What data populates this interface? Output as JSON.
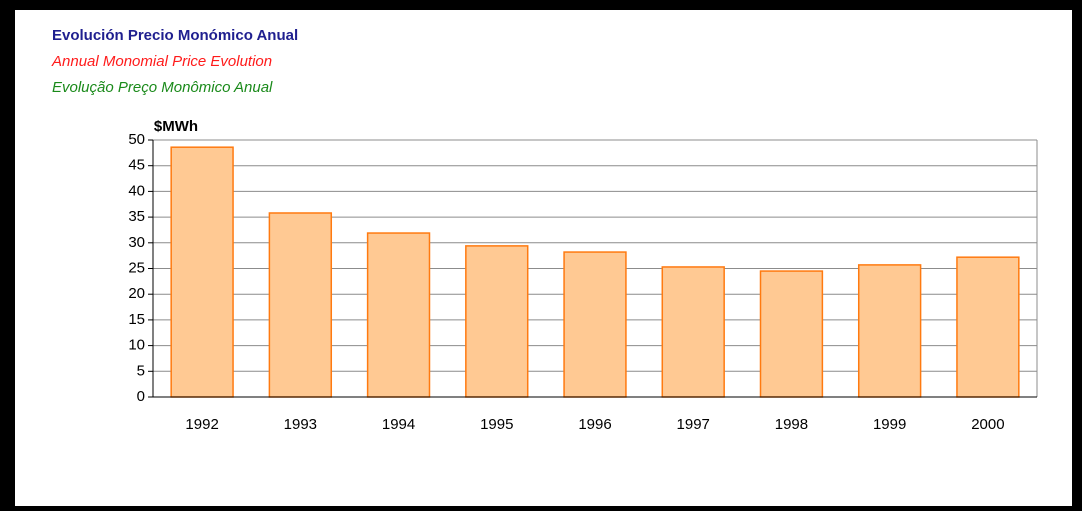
{
  "chart_data": {
    "type": "bar",
    "title": "Evolución Precio Monómico Anual",
    "subtitle": "Annual Monomial Price Evolution",
    "subtitle_pt": "Evolução Preço Monômico Anual",
    "y_label": "$MWh",
    "categories": [
      "1992",
      "1993",
      "1994",
      "1995",
      "1996",
      "1997",
      "1998",
      "1999",
      "2000"
    ],
    "values": [
      48.6,
      35.8,
      31.9,
      29.4,
      28.2,
      25.3,
      24.5,
      25.7,
      27.2
    ],
    "color": "#ffc993",
    "ylim": [
      0,
      50
    ],
    "yticks": [
      0,
      5,
      10,
      15,
      20,
      25,
      30,
      35,
      40,
      45,
      50
    ],
    "grid": true
  }
}
